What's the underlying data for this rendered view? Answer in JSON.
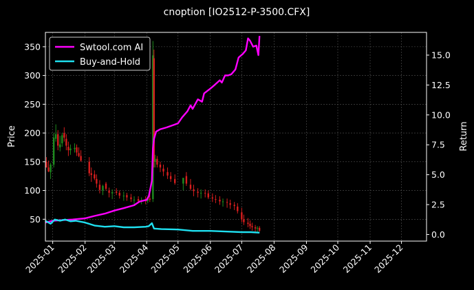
{
  "chart_data": {
    "type": "line",
    "title": "cnoption [IO2512-P-3500.CFX]",
    "ylabel_left": "Price",
    "ylabel_right": "Return",
    "xlabel": "",
    "x_ticks": [
      "2025-01",
      "2025-02",
      "2025-03",
      "2025-04",
      "2025-05",
      "2025-06",
      "2025-07",
      "2025-08",
      "2025-09",
      "2025-10",
      "2025-11",
      "2025-12"
    ],
    "x_range": [
      "2024-12-25",
      "2025-12-25"
    ],
    "y_left_ticks": [
      50,
      100,
      150,
      200,
      250,
      300,
      350
    ],
    "y_left_range": [
      12,
      375
    ],
    "y_right_ticks": [
      "0.0",
      "2.5",
      "5.0",
      "7.5",
      "10.0",
      "12.5",
      "15.0"
    ],
    "y_right_range": [
      -0.55,
      16.9
    ],
    "grid": true,
    "legend_position": "top-left",
    "colors": {
      "background": "#000000",
      "candle_up": "#1e8c1e",
      "candle_down": "#d81e1e",
      "strategy": "#ff00ff",
      "benchmark": "#1fe0f0",
      "grid": "#555555"
    },
    "series": [
      {
        "name": "Swtool.com AI",
        "axis": "right",
        "x": [
          "2024-12-25",
          "2025-01-01",
          "2025-01-10",
          "2025-01-20",
          "2025-02-01",
          "2025-02-10",
          "2025-02-20",
          "2025-03-01",
          "2025-03-10",
          "2025-03-20",
          "2025-03-25",
          "2025-04-01",
          "2025-04-03",
          "2025-04-06",
          "2025-04-07",
          "2025-04-08",
          "2025-04-10",
          "2025-04-14",
          "2025-04-20",
          "2025-04-28",
          "2025-05-01",
          "2025-05-05",
          "2025-05-10",
          "2025-05-13",
          "2025-05-15",
          "2025-05-20",
          "2025-05-24",
          "2025-05-26",
          "2025-06-01",
          "2025-06-05",
          "2025-06-10",
          "2025-06-12",
          "2025-06-15",
          "2025-06-18",
          "2025-06-21",
          "2025-06-25",
          "2025-06-28",
          "2025-07-02",
          "2025-07-05",
          "2025-07-07",
          "2025-07-09",
          "2025-07-12",
          "2025-07-15",
          "2025-07-17",
          "2025-07-18"
        ],
        "values": [
          1.0,
          1.15,
          1.2,
          1.25,
          1.35,
          1.55,
          1.75,
          2.0,
          2.2,
          2.45,
          2.75,
          2.9,
          3.2,
          4.5,
          7.2,
          8.0,
          8.6,
          8.8,
          8.95,
          9.2,
          9.3,
          9.8,
          10.3,
          10.8,
          10.5,
          11.3,
          11.1,
          11.8,
          12.2,
          12.5,
          12.9,
          12.7,
          13.3,
          13.3,
          13.4,
          13.8,
          14.8,
          15.1,
          15.4,
          16.4,
          16.2,
          15.7,
          15.8,
          15.0,
          16.6
        ]
      },
      {
        "name": "Buy-and-Hold",
        "axis": "right",
        "x": [
          "2024-12-25",
          "2024-12-30",
          "2025-01-03",
          "2025-01-08",
          "2025-01-13",
          "2025-01-18",
          "2025-01-23",
          "2025-02-01",
          "2025-02-10",
          "2025-02-20",
          "2025-03-01",
          "2025-03-10",
          "2025-03-20",
          "2025-03-31",
          "2025-04-03",
          "2025-04-06",
          "2025-04-08",
          "2025-04-15",
          "2025-05-01",
          "2025-05-15",
          "2025-06-01",
          "2025-06-15",
          "2025-07-01",
          "2025-07-10",
          "2025-07-18"
        ],
        "values": [
          1.15,
          0.9,
          1.25,
          1.15,
          1.25,
          1.1,
          1.15,
          1.0,
          0.75,
          0.65,
          0.7,
          0.6,
          0.6,
          0.65,
          0.7,
          0.95,
          0.5,
          0.45,
          0.42,
          0.3,
          0.3,
          0.25,
          0.2,
          0.2,
          0.15
        ]
      }
    ],
    "candles": {
      "axis": "left",
      "x": [
        "2024-12-26",
        "2024-12-28",
        "2024-12-30",
        "2025-01-02",
        "2025-01-04",
        "2025-01-06",
        "2025-01-08",
        "2025-01-10",
        "2025-01-12",
        "2025-01-14",
        "2025-01-16",
        "2025-01-18",
        "2025-01-22",
        "2025-01-24",
        "2025-01-26",
        "2025-01-28",
        "2025-02-05",
        "2025-02-07",
        "2025-02-10",
        "2025-02-12",
        "2025-02-15",
        "2025-02-18",
        "2025-02-21",
        "2025-02-24",
        "2025-02-27",
        "2025-03-03",
        "2025-03-06",
        "2025-03-10",
        "2025-03-13",
        "2025-03-17",
        "2025-03-20",
        "2025-03-24",
        "2025-03-27",
        "2025-03-31",
        "2025-04-02",
        "2025-04-04",
        "2025-04-07",
        "2025-04-08",
        "2025-04-09",
        "2025-04-11",
        "2025-04-14",
        "2025-04-17",
        "2025-04-21",
        "2025-04-24",
        "2025-04-28",
        "2025-05-06",
        "2025-05-09",
        "2025-05-13",
        "2025-05-16",
        "2025-05-20",
        "2025-05-23",
        "2025-05-27",
        "2025-05-30",
        "2025-06-03",
        "2025-06-06",
        "2025-06-10",
        "2025-06-13",
        "2025-06-17",
        "2025-06-20",
        "2025-06-24",
        "2025-06-27",
        "2025-07-01",
        "2025-07-03",
        "2025-07-07",
        "2025-07-09",
        "2025-07-11",
        "2025-07-14",
        "2025-07-16",
        "2025-07-18"
      ],
      "open": [
        150,
        140,
        132,
        145,
        190,
        198,
        175,
        182,
        200,
        190,
        176,
        170,
        172,
        175,
        165,
        160,
        150,
        130,
        128,
        120,
        110,
        100,
        112,
        100,
        95,
        98,
        96,
        90,
        92,
        88,
        84,
        85,
        82,
        83,
        82,
        86,
        85,
        330,
        150,
        155,
        145,
        138,
        132,
        125,
        120,
        112,
        125,
        110,
        102,
        98,
        95,
        96,
        95,
        88,
        85,
        84,
        80,
        80,
        78,
        75,
        72,
        62,
        50,
        44,
        42,
        38,
        36,
        34,
        35
      ],
      "high": [
        158,
        152,
        148,
        200,
        215,
        205,
        195,
        200,
        210,
        198,
        185,
        180,
        182,
        180,
        175,
        170,
        158,
        140,
        135,
        128,
        118,
        110,
        115,
        105,
        102,
        104,
        100,
        98,
        96,
        94,
        90,
        90,
        88,
        90,
        90,
        95,
        360,
        345,
        162,
        160,
        150,
        145,
        140,
        132,
        128,
        120,
        132,
        120,
        110,
        104,
        102,
        102,
        100,
        95,
        92,
        90,
        86,
        86,
        84,
        80,
        78,
        70,
        58,
        52,
        48,
        44,
        40,
        38,
        38
      ],
      "low": [
        140,
        132,
        120,
        140,
        185,
        170,
        168,
        176,
        185,
        170,
        160,
        162,
        166,
        160,
        158,
        150,
        125,
        115,
        118,
        105,
        95,
        92,
        100,
        88,
        85,
        92,
        86,
        82,
        82,
        80,
        76,
        78,
        76,
        76,
        78,
        80,
        80,
        140,
        140,
        140,
        132,
        125,
        120,
        115,
        110,
        100,
        108,
        100,
        90,
        88,
        86,
        88,
        85,
        80,
        78,
        75,
        72,
        70,
        68,
        66,
        60,
        45,
        40,
        36,
        33,
        30,
        28,
        26,
        28
      ],
      "close": [
        140,
        133,
        145,
        192,
        198,
        178,
        180,
        196,
        192,
        178,
        170,
        173,
        174,
        166,
        160,
        152,
        130,
        127,
        121,
        112,
        101,
        108,
        103,
        96,
        97,
        96,
        91,
        91,
        88,
        85,
        84,
        82,
        83,
        82,
        86,
        84,
        335,
        150,
        155,
        145,
        140,
        133,
        126,
        120,
        113,
        122,
        112,
        103,
        99,
        96,
        96,
        95,
        88,
        86,
        84,
        81,
        81,
        79,
        75,
        73,
        64,
        50,
        45,
        42,
        38,
        36,
        34,
        35,
        30
      ]
    }
  }
}
